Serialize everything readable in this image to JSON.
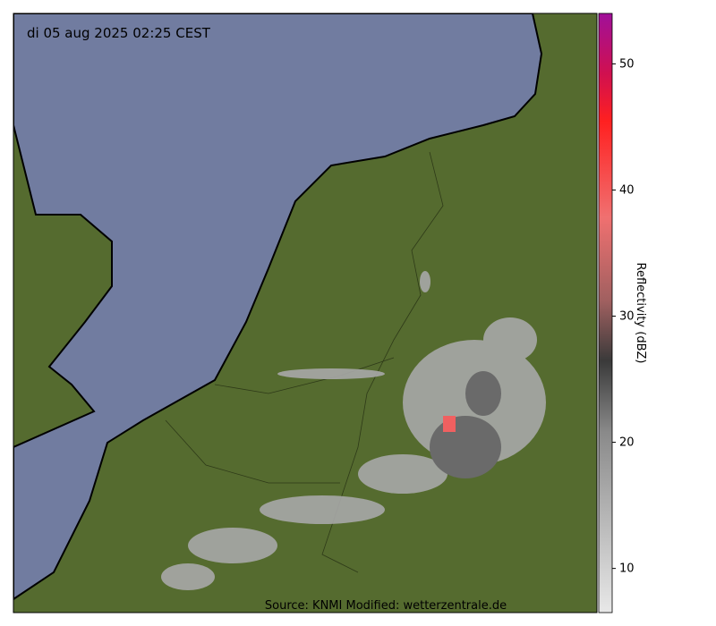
{
  "map": {
    "timestamp": "di 05 aug 2025 02:25 CEST",
    "source": "Source: KNMI Modified: wetterzentrale.de",
    "colorbar": {
      "label": "Reflectivity (dBZ)",
      "lim": [
        6.5,
        54
      ],
      "ticks": [
        10,
        20,
        30,
        40,
        50
      ]
    }
  }
}
